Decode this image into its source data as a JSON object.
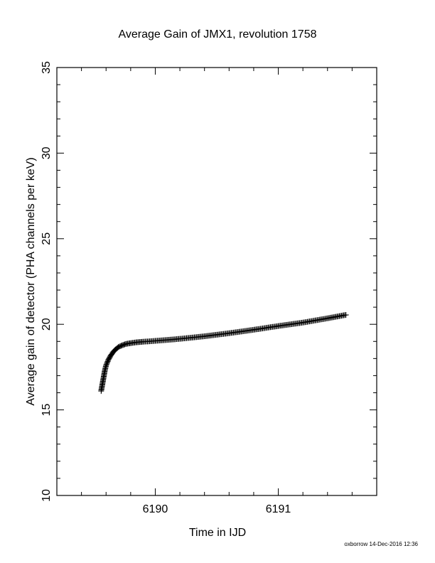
{
  "chart_data": {
    "type": "scatter",
    "title": "Average Gain of JMX1, revolution 1758",
    "xlabel": "Time in IJD",
    "ylabel": "Average gain of detector (PHA channels per keV)",
    "xlim": [
      6189.2,
      6191.8
    ],
    "ylim": [
      10,
      35
    ],
    "x_ticks": [
      6190,
      6191
    ],
    "y_ticks": [
      10,
      15,
      20,
      25,
      30,
      35
    ],
    "marker": "plus",
    "grid": false,
    "series": [
      {
        "x": [
          6189.56,
          6189.57,
          6189.58,
          6189.59,
          6189.6,
          6189.62,
          6189.64,
          6189.66,
          6189.68,
          6189.7,
          6189.73,
          6189.76,
          6189.8,
          6189.85,
          6189.9,
          6190.0,
          6190.2,
          6190.4,
          6190.6,
          6190.8,
          6191.0,
          6191.2,
          6191.4,
          6191.55
        ],
        "y": [
          16.1,
          16.5,
          16.9,
          17.3,
          17.6,
          17.95,
          18.2,
          18.4,
          18.55,
          18.67,
          18.77,
          18.85,
          18.9,
          18.95,
          18.98,
          19.03,
          19.15,
          19.3,
          19.48,
          19.68,
          19.9,
          20.1,
          20.35,
          20.55
        ]
      }
    ]
  },
  "footer": {
    "credit": "oxborrow 14-Dec-2016 12:36"
  }
}
